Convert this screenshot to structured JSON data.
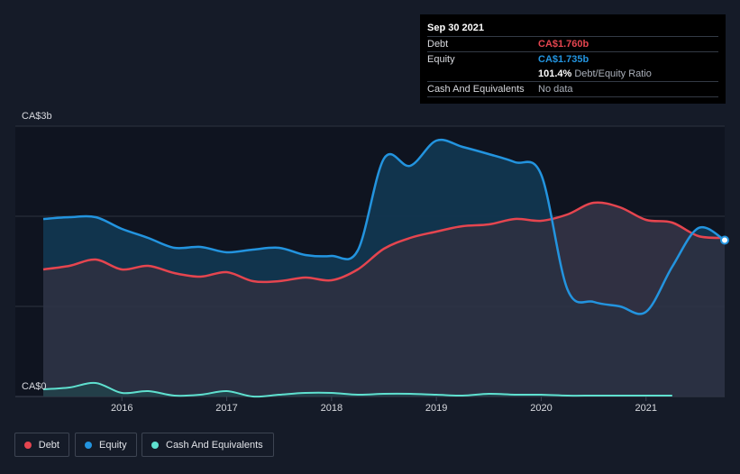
{
  "tooltip": {
    "date": "Sep 30 2021",
    "debt_label": "Debt",
    "debt_value": "CA$1.760b",
    "equity_label": "Equity",
    "equity_value": "CA$1.735b",
    "ratio_value": "101.4%",
    "ratio_label": "Debt/Equity Ratio",
    "cash_label": "Cash And Equivalents",
    "cash_value": "No data"
  },
  "legend": {
    "debt": "Debt",
    "equity": "Equity",
    "cash": "Cash And Equivalents"
  },
  "colors": {
    "debt": "#e5454f",
    "equity": "#2394df",
    "cash": "#5fe0cf"
  },
  "chart_data": {
    "type": "area",
    "y_unit": "CA$ billions",
    "y_tick_labels": [
      "CA$0",
      "CA$3b"
    ],
    "ylim": [
      0,
      3
    ],
    "xlim": [
      2015.25,
      2021.75
    ],
    "x_ticks": [
      2016,
      2017,
      2018,
      2019,
      2020,
      2021
    ],
    "x_tick_labels": [
      "2016",
      "2017",
      "2018",
      "2019",
      "2020",
      "2021"
    ],
    "series": [
      {
        "name": "Debt",
        "x": [
          2015.25,
          2015.5,
          2015.75,
          2016.0,
          2016.25,
          2016.5,
          2016.75,
          2017.0,
          2017.25,
          2017.5,
          2017.75,
          2018.0,
          2018.25,
          2018.5,
          2018.75,
          2019.0,
          2019.25,
          2019.5,
          2019.75,
          2020.0,
          2020.25,
          2020.5,
          2020.75,
          2021.0,
          2021.25,
          2021.5,
          2021.75
        ],
        "values": [
          1.41,
          1.45,
          1.52,
          1.41,
          1.45,
          1.37,
          1.33,
          1.38,
          1.28,
          1.28,
          1.32,
          1.29,
          1.41,
          1.64,
          1.76,
          1.83,
          1.89,
          1.91,
          1.97,
          1.95,
          2.02,
          2.15,
          2.1,
          1.96,
          1.93,
          1.78,
          1.76
        ]
      },
      {
        "name": "Equity",
        "x": [
          2015.25,
          2015.5,
          2015.75,
          2016.0,
          2016.25,
          2016.5,
          2016.75,
          2017.0,
          2017.25,
          2017.5,
          2017.75,
          2018.0,
          2018.25,
          2018.5,
          2018.75,
          2019.0,
          2019.25,
          2019.5,
          2019.75,
          2020.0,
          2020.25,
          2020.5,
          2020.75,
          2021.0,
          2021.25,
          2021.5,
          2021.75
        ],
        "values": [
          1.97,
          1.99,
          1.99,
          1.86,
          1.76,
          1.65,
          1.66,
          1.6,
          1.63,
          1.65,
          1.57,
          1.56,
          1.62,
          2.64,
          2.56,
          2.84,
          2.77,
          2.69,
          2.6,
          2.46,
          1.19,
          1.05,
          1.0,
          0.94,
          1.44,
          1.87,
          1.735
        ]
      },
      {
        "name": "Cash And Equivalents",
        "x": [
          2015.25,
          2015.5,
          2015.75,
          2016.0,
          2016.25,
          2016.5,
          2016.75,
          2017.0,
          2017.25,
          2017.5,
          2017.75,
          2018.0,
          2018.25,
          2018.5,
          2018.75,
          2019.0,
          2019.25,
          2019.5,
          2019.75,
          2020.0,
          2020.25,
          2020.5,
          2020.75,
          2021.0,
          2021.25
        ],
        "values": [
          0.08,
          0.1,
          0.15,
          0.04,
          0.06,
          0.01,
          0.02,
          0.06,
          0.0,
          0.02,
          0.04,
          0.04,
          0.02,
          0.03,
          0.03,
          0.02,
          0.01,
          0.03,
          0.02,
          0.02,
          0.01,
          0.01,
          0.01,
          0.01,
          0.01
        ]
      }
    ]
  }
}
